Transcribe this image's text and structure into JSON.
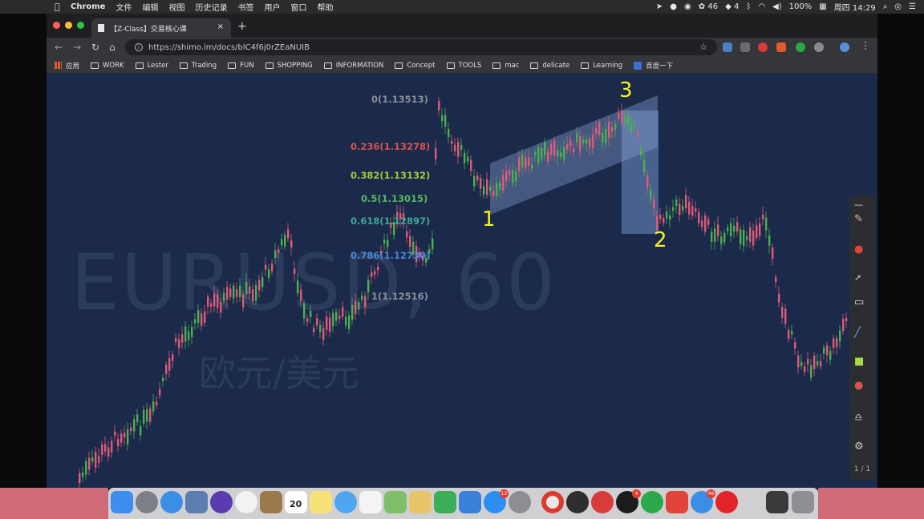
{
  "menubar": {
    "app": "Chrome",
    "menus": [
      "文件",
      "编辑",
      "视图",
      "历史记录",
      "书签",
      "用户",
      "窗口",
      "帮助"
    ],
    "status_46": "46",
    "status_4": "4",
    "battery": "100%",
    "clock": "周四 14:29"
  },
  "tab": {
    "title": "【Z-Class】交易核心课",
    "close": "×",
    "new": "+"
  },
  "nav": {
    "back": "←",
    "forward": "→",
    "reload": "↻",
    "home": "⌂"
  },
  "address": {
    "url": "https://shimo.im/docs/blC4f6j0rZEaNUIB",
    "info": "i",
    "star": "☆"
  },
  "bookmarks": [
    "应用",
    "WORK",
    "Lester",
    "Trading",
    "FUN",
    "SHOPPING",
    "INFORMATION",
    "Concept",
    "TOOLS",
    "mac",
    "delicate",
    "Learning",
    "百度一下"
  ],
  "chart": {
    "watermark_symbol": "EURUSD, 60",
    "watermark_name": "欧元/美元",
    "fib_levels": [
      {
        "label": "0(1.13513)",
        "color": "#8c8f99"
      },
      {
        "label": "0.236(1.13278)",
        "color": "#d9534f"
      },
      {
        "label": "0.382(1.13132)",
        "color": "#a6c83a"
      },
      {
        "label": "0.5(1.13015)",
        "color": "#58b85c"
      },
      {
        "label": "0.618(1.12897)",
        "color": "#3fa69a"
      },
      {
        "label": "0.786(1.12730)",
        "color": "#4a86d4"
      },
      {
        "label": "1(1.12516)",
        "color": "#8c8f99"
      }
    ],
    "markers": [
      "1",
      "2",
      "3"
    ],
    "up_color": "#4caf50",
    "down_color": "#e05a7a",
    "page_indicator": "1 / 1"
  },
  "dock": {
    "calendar_day": "20",
    "calendar_month": "DEC",
    "badge_appstore": "12",
    "badge_qq": "4",
    "badge_mail": "46"
  }
}
